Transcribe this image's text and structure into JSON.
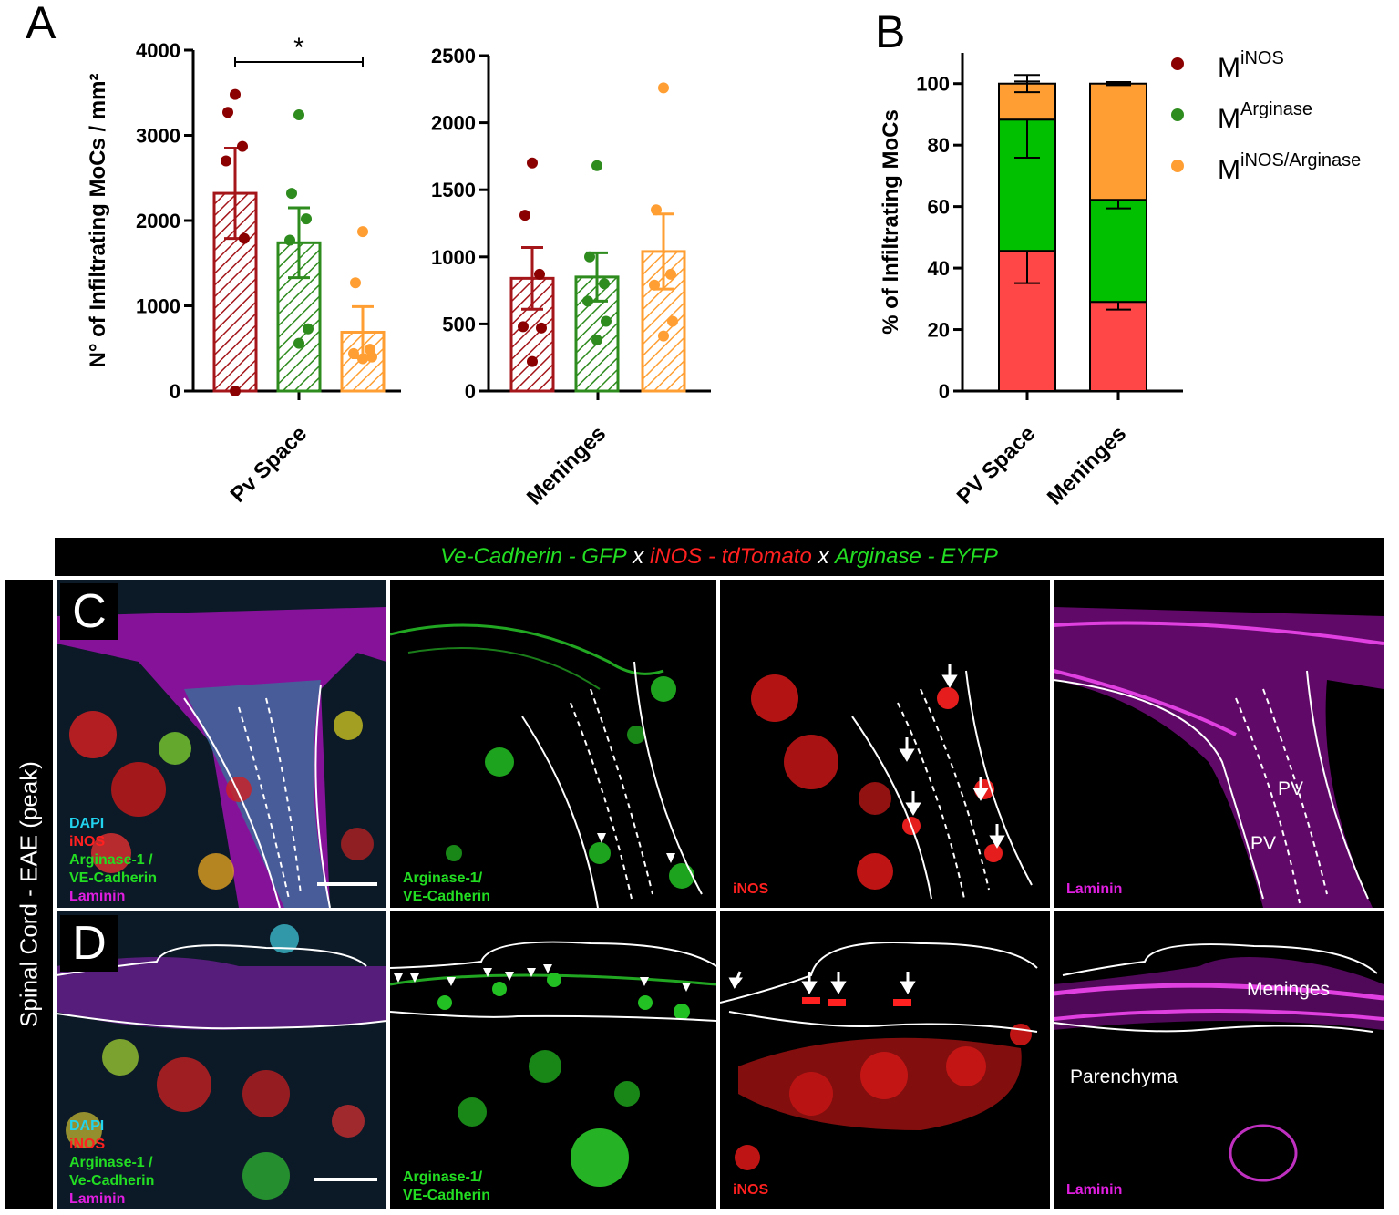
{
  "panel_letters": {
    "a": "A",
    "b": "B",
    "c": "C",
    "d": "D"
  },
  "colors": {
    "inos": "#8b0000",
    "arginase": "#2e8b1e",
    "double": "#ff9f33",
    "inos_bar": "#ff4747",
    "arginase_bar": "#00c000"
  },
  "chart_data": [
    {
      "id": "A-pv",
      "type": "bar",
      "ylabel": "N° of Infiltrating MoCs / mm²",
      "ylim": [
        0,
        4000
      ],
      "yticks": [
        0,
        1000,
        2000,
        3000,
        4000
      ],
      "group_label": "Pv Space",
      "significance": "*",
      "bars": [
        {
          "series": "iNOS",
          "mean": 2320,
          "sem": 530,
          "points": [
            3480,
            3270,
            2870,
            2700,
            1790,
            0
          ]
        },
        {
          "series": "Arginase",
          "mean": 1740,
          "sem": 410,
          "points": [
            3240,
            2320,
            2020,
            1770,
            730,
            560
          ]
        },
        {
          "series": "iNOS/Arginase",
          "mean": 690,
          "sem": 300,
          "points": [
            1870,
            1270,
            490,
            440,
            400,
            380
          ]
        }
      ]
    },
    {
      "id": "A-meninges",
      "type": "bar",
      "ylim": [
        0,
        2500
      ],
      "yticks": [
        0,
        500,
        1000,
        1500,
        2000,
        2500
      ],
      "group_label": "Meninges",
      "bars": [
        {
          "series": "iNOS",
          "mean": 840,
          "sem": 230,
          "points": [
            1700,
            1310,
            870,
            480,
            470,
            220
          ]
        },
        {
          "series": "Arginase",
          "mean": 850,
          "sem": 180,
          "points": [
            1680,
            1000,
            800,
            670,
            520,
            380
          ]
        },
        {
          "series": "iNOS/Arginase",
          "mean": 1040,
          "sem": 280,
          "points": [
            2260,
            1350,
            870,
            790,
            520,
            410
          ]
        }
      ]
    },
    {
      "id": "B",
      "type": "bar",
      "stacked": true,
      "ylabel": "% of Infiltrating MoCs",
      "ylim": [
        0,
        110
      ],
      "yticks": [
        0,
        20,
        40,
        60,
        80,
        100
      ],
      "categories": [
        "PV Space",
        "Meninges"
      ],
      "series": [
        {
          "name": "iNOS",
          "values": [
            45.6,
            29.0
          ],
          "sem": [
            10.5,
            2.5
          ]
        },
        {
          "name": "Arginase",
          "values": [
            42.7,
            33.2
          ],
          "sem": [
            12.4,
            2.8
          ]
        },
        {
          "name": "iNOS/Arginase",
          "values": [
            11.7,
            37.8
          ],
          "sem": [
            2.8,
            0.5
          ]
        }
      ],
      "legend": {
        "position": "top-right",
        "items": [
          {
            "base": "M",
            "sup": "iNOS"
          },
          {
            "base": "M",
            "sup": "Arginase"
          },
          {
            "base": "M",
            "sup": "iNOS/Arginase"
          }
        ]
      }
    }
  ],
  "micro": {
    "title": {
      "part1": "Ve-Cadherin - GFP",
      "x1": " x ",
      "part2": "iNOS - tdTomato",
      "x2": " x ",
      "part3": "Arginase - EYFP"
    },
    "row_label": "Spinal Cord - EAE (peak)",
    "merge_labels": [
      "DAPI",
      "iNOS",
      "Arginase-1 /",
      "VE-Cadherin",
      "Laminin"
    ],
    "merge_labels_d": [
      "DAPI",
      "iNOS",
      "Arginase-1 /",
      "Ve-Cadherin",
      "Laminin"
    ],
    "green_label": [
      "Arginase-1/",
      "VE-Cadherin"
    ],
    "red_label": "iNOS",
    "magenta_label": "Laminin",
    "pv_tag": "PV",
    "meninges_tag": "Meninges",
    "parenchyma_tag": "Parenchyma"
  }
}
